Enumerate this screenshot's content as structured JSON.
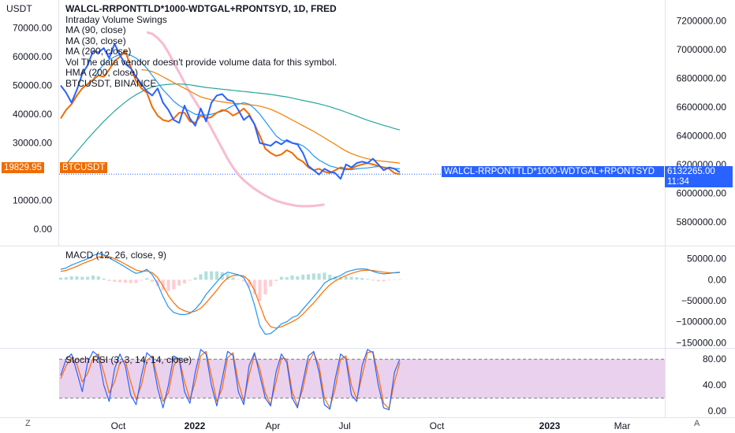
{
  "header": {
    "title": "WALCL-RRPONTTLD*1000-WDTGAL+RPONTSYD, 1D, FRED",
    "legend": [
      "Intraday Volume Swings",
      "MA (90, close)",
      "MA (30, close)",
      "MA (200, close)",
      "Vol  The data vendor doesn't provide volume data for this symbol.",
      "HMA (200, close)",
      "BTCUSDT, BINANCE"
    ],
    "left_unit": "USDT"
  },
  "tags": {
    "btc_price": "19829.95",
    "btc_symbol": "BTCUSDT",
    "fred_symbol": "WALCL-RRPONTTLD*1000-WDTGAL+RPONTSYD",
    "fred_value": "6132265.00",
    "countdown": "11:34"
  },
  "panes": {
    "macd_title": "MACD (12, 26, close, 9)",
    "stoch_title": "Stoch RSI (3, 3, 14, 14, close)"
  },
  "bottom": {
    "left_icon": "Z",
    "right_icon": "A"
  },
  "colors": {
    "btc": "#2962ff",
    "fred": "#ef6c00",
    "ma30": "#2196f3",
    "ma90": "#f57c00",
    "ma200": "#26a69a",
    "hma": "#f8bbd0",
    "macd": "#2196f3",
    "signal": "#ff6d00",
    "hist_pos": "#b2dfdb",
    "hist_neg": "#ffcdd2",
    "stoch_k": "#2962ff",
    "stoch_d": "#ff6d00",
    "stoch_band": "#e1bee7",
    "tag_blue": "#2962ff",
    "tag_orange": "#ef6c00"
  },
  "chart_data": [
    {
      "type": "line",
      "pane": "main",
      "x_ticks": [
        "Oct",
        "2022",
        "Apr",
        "Jul",
        "Oct",
        "2023",
        "Mar"
      ],
      "y_left_ticks": [
        0,
        10000,
        20000,
        30000,
        40000,
        50000,
        60000,
        70000
      ],
      "y_left_tick_labels": [
        "0.00",
        "10000.00",
        "30000.00",
        "40000.00",
        "50000.00",
        "60000.00",
        "70000.00"
      ],
      "y_left_range": [
        -3000,
        77000
      ],
      "y_right_ticks": [
        5800000,
        6000000,
        6200000,
        6400000,
        6600000,
        6800000,
        7000000,
        7200000
      ],
      "y_right_tick_labels": [
        "5800000.00",
        "6000000.00",
        "6200000.00",
        "6400000.00",
        "6600000.00",
        "6800000.00",
        "7000000.00",
        "7200000.00"
      ],
      "y_right_range": [
        5690000,
        7290000
      ],
      "series": [
        {
          "name": "BTCUSDT",
          "axis": "left",
          "values": [
            50000,
            47500,
            44000,
            48500,
            54000,
            57000,
            62000,
            61500,
            63000,
            59500,
            64500,
            60500,
            57500,
            56000,
            53000,
            50500,
            48000,
            46500,
            49000,
            44000,
            41500,
            38000,
            37000,
            43000,
            38500,
            36000,
            42000,
            37500,
            44000,
            46500,
            47000,
            45000,
            44500,
            41500,
            38000,
            39500,
            36500,
            30000,
            29500,
            29000,
            30500,
            29500,
            31000,
            30000,
            29500,
            26500,
            22000,
            20500,
            19000,
            21000,
            20000,
            19500,
            17500,
            22500,
            21500,
            23000,
            23500,
            23000,
            24500,
            22500,
            20500,
            21500,
            21000,
            19800
          ]
        },
        {
          "name": "WALCL-RRPONTTLD*1000-WDTGAL+RPONTSYD",
          "axis": "right",
          "values": [
            6520000,
            6580000,
            6620000,
            6680000,
            6730000,
            6760000,
            6790000,
            6820000,
            6810000,
            6860000,
            6920000,
            6950000,
            6990000,
            6880000,
            6780000,
            6730000,
            6700000,
            6600000,
            6540000,
            6510000,
            6500000,
            6520000,
            6560000,
            6560000,
            6500000,
            6490000,
            6540000,
            6520000,
            6530000,
            6560000,
            6580000,
            6570000,
            6540000,
            6560000,
            6590000,
            6550000,
            6480000,
            6400000,
            6310000,
            6280000,
            6260000,
            6270000,
            6300000,
            6280000,
            6240000,
            6220000,
            6180000,
            6160000,
            6170000,
            6150000,
            6140000,
            6160000,
            6180000,
            6170000,
            6170000,
            6190000,
            6200000,
            6210000,
            6200000,
            6190000,
            6180000,
            6170000,
            6140000,
            6132265
          ]
        },
        {
          "name": "MA (30, close)",
          "axis": "left",
          "values": [
            null,
            null,
            null,
            null,
            null,
            50000,
            52000,
            55000,
            57500,
            59000,
            60000,
            60800,
            61000,
            60500,
            59500,
            58000,
            56000,
            53500,
            51000,
            48500,
            46500,
            44500,
            43000,
            42000,
            41000,
            40000,
            39800,
            39700,
            40000,
            40500,
            41000,
            42000,
            43000,
            43500,
            44000,
            43500,
            42000,
            40000,
            37500,
            35000,
            32500,
            31000,
            30500,
            30000,
            29800,
            29000,
            27500,
            25500,
            24000,
            23000,
            22000,
            21500,
            21000,
            20700,
            20700,
            21000,
            21200,
            21300,
            21600,
            21800,
            21600,
            21300,
            21100,
            21000
          ]
        },
        {
          "name": "MA (90, close)",
          "axis": "left",
          "values": [
            null,
            null,
            null,
            null,
            null,
            null,
            null,
            null,
            null,
            null,
            null,
            null,
            null,
            null,
            null,
            55500,
            55300,
            54800,
            54000,
            53000,
            52000,
            51000,
            50000,
            49000,
            48000,
            47000,
            46000,
            45500,
            45000,
            44600,
            44300,
            44000,
            43800,
            43700,
            43500,
            43300,
            43100,
            42800,
            42300,
            41700,
            40900,
            40000,
            39000,
            38000,
            37000,
            36000,
            35000,
            34000,
            32900,
            31800,
            30600,
            29500,
            28300,
            27200,
            26300,
            25600,
            25000,
            24500,
            24100,
            23800,
            23600,
            23400,
            23200,
            23000
          ]
        },
        {
          "name": "MA (200, close)",
          "axis": "left",
          "values": [
            20500,
            22600,
            24800,
            27000,
            29200,
            31400,
            33500,
            35500,
            37500,
            39300,
            41100,
            42700,
            44200,
            45600,
            46800,
            47800,
            48700,
            49400,
            49900,
            50200,
            50400,
            50500,
            50500,
            50400,
            50200,
            49900,
            49600,
            49300,
            49100,
            48900,
            48700,
            48500,
            48300,
            48100,
            47900,
            47700,
            47500,
            47300,
            47100,
            46900,
            46600,
            46300,
            46000,
            45600,
            45200,
            44800,
            44400,
            44000,
            43600,
            43100,
            42600,
            42000,
            41400,
            40700,
            40000,
            39300,
            38600,
            37900,
            37300,
            36700,
            36100,
            35600,
            35000,
            34500
          ]
        },
        {
          "name": "HMA (200, close)",
          "axis": "left",
          "values": [
            null,
            null,
            null,
            null,
            null,
            null,
            null,
            null,
            null,
            null,
            null,
            null,
            null,
            null,
            null,
            null,
            68500,
            68000,
            66500,
            64500,
            61500,
            58000,
            54500,
            51000,
            47500,
            44500,
            41500,
            38500,
            35000,
            31500,
            28000,
            24500,
            21500,
            19000,
            17000,
            15500,
            14000,
            12800,
            11700,
            10700,
            9900,
            9300,
            8800,
            8400,
            8100,
            8000,
            8000,
            8100,
            8300,
            8600
          ]
        }
      ]
    },
    {
      "type": "line",
      "pane": "macd",
      "y_ticks": [
        -150000,
        -100000,
        -50000,
        0,
        50000
      ],
      "y_tick_labels": [
        "−150000.00",
        "−100000.00",
        "−50000.00",
        "0.00",
        "50000.00"
      ],
      "y_range": [
        -155000,
        70000
      ],
      "series": [
        {
          "name": "MACD",
          "values": [
            25000,
            28000,
            35000,
            40000,
            45000,
            50000,
            58000,
            62000,
            60000,
            52000,
            45000,
            38000,
            30000,
            22000,
            15000,
            18000,
            25000,
            12000,
            -10000,
            -40000,
            -65000,
            -78000,
            -82000,
            -83000,
            -80000,
            -70000,
            -55000,
            -35000,
            -20000,
            -5000,
            10000,
            18000,
            15000,
            12000,
            5000,
            -20000,
            -60000,
            -110000,
            -130000,
            -128000,
            -118000,
            -105000,
            -100000,
            -90000,
            -85000,
            -70000,
            -55000,
            -40000,
            -25000,
            -8000,
            0,
            5000,
            10000,
            18000,
            22000,
            25000,
            26000,
            25000,
            20000,
            16000,
            14000,
            15000,
            17000,
            18000
          ]
        },
        {
          "name": "Signal",
          "values": [
            20000,
            22000,
            27000,
            32000,
            38000,
            43000,
            48000,
            54000,
            57000,
            55000,
            50000,
            44000,
            37000,
            30000,
            23000,
            20000,
            21000,
            17000,
            5000,
            -15000,
            -38000,
            -55000,
            -68000,
            -74000,
            -78000,
            -75000,
            -68000,
            -55000,
            -40000,
            -25000,
            -8000,
            4000,
            10000,
            11000,
            9000,
            -2000,
            -25000,
            -60000,
            -95000,
            -112000,
            -115000,
            -112000,
            -106000,
            -100000,
            -93000,
            -82000,
            -68000,
            -55000,
            -40000,
            -25000,
            -12000,
            -3000,
            4000,
            10000,
            15000,
            19000,
            22000,
            23000,
            22000,
            20000,
            18000,
            16500,
            16500,
            17000
          ]
        }
      ]
    },
    {
      "type": "line",
      "pane": "stoch_rsi",
      "y_ticks": [
        0,
        40,
        80
      ],
      "y_tick_labels": [
        "0.00",
        "40.00",
        "80.00"
      ],
      "y_range": [
        -7,
        90
      ],
      "band": [
        20,
        80
      ],
      "series": [
        {
          "name": "%K",
          "values": [
            55,
            80,
            88,
            60,
            30,
            75,
            92,
            85,
            40,
            15,
            65,
            88,
            70,
            25,
            10,
            55,
            90,
            82,
            35,
            5,
            40,
            85,
            80,
            30,
            12,
            60,
            95,
            88,
            40,
            8,
            50,
            92,
            86,
            30,
            10,
            70,
            90,
            55,
            20,
            8,
            60,
            88,
            75,
            20,
            5,
            45,
            85,
            92,
            60,
            10,
            3,
            50,
            88,
            80,
            25,
            15,
            70,
            95,
            90,
            40,
            5,
            2,
            60,
            80
          ]
        },
        {
          "name": "%D",
          "values": [
            50,
            70,
            82,
            72,
            45,
            58,
            82,
            88,
            60,
            28,
            45,
            75,
            78,
            45,
            18,
            40,
            78,
            85,
            50,
            15,
            28,
            70,
            82,
            45,
            18,
            45,
            85,
            92,
            55,
            15,
            35,
            82,
            90,
            45,
            15,
            55,
            88,
            65,
            28,
            10,
            45,
            82,
            80,
            30,
            8,
            35,
            75,
            90,
            70,
            20,
            5,
            35,
            80,
            85,
            40,
            18,
            55,
            90,
            92,
            55,
            12,
            4,
            45,
            75
          ]
        }
      ]
    }
  ]
}
